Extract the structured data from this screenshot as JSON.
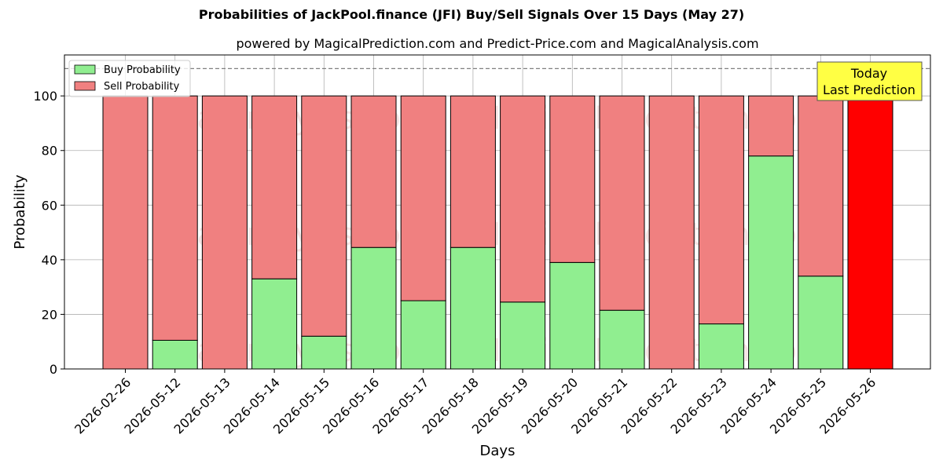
{
  "chart_data": {
    "type": "bar",
    "stacked": true,
    "title": "Probabilities of JackPool.finance (JFI) Buy/Sell Signals Over 15 Days (May 27)",
    "subtitle": "powered by MagicalPrediction.com and Predict-Price.com and MagicalAnalysis.com",
    "xlabel": "Days",
    "ylabel": "Probability",
    "ylim": [
      0,
      115
    ],
    "yticks": [
      0,
      20,
      40,
      60,
      80,
      100
    ],
    "grid": true,
    "legend_position": "top-left",
    "reference_line": 110,
    "categories": [
      "2026-02-26",
      "2026-05-12",
      "2026-05-13",
      "2026-05-14",
      "2026-05-15",
      "2026-05-16",
      "2026-05-17",
      "2026-05-18",
      "2026-05-19",
      "2026-05-20",
      "2026-05-21",
      "2026-05-22",
      "2026-05-23",
      "2026-05-24",
      "2026-05-25",
      "2026-05-26"
    ],
    "series": [
      {
        "name": "Buy Probability",
        "color": "#90ee90",
        "values": [
          0,
          10.5,
          0,
          33,
          12,
          44.5,
          25,
          44.5,
          24.5,
          39,
          21.5,
          0,
          16.5,
          78,
          34,
          0
        ]
      },
      {
        "name": "Sell Probability",
        "color": "#f08080",
        "values": [
          100,
          89.5,
          100,
          67,
          88,
          55.5,
          75,
          55.5,
          75.5,
          61,
          78.5,
          100,
          83.5,
          22,
          66,
          100
        ]
      }
    ],
    "highlight": {
      "category": "2026-05-26",
      "color": "#ff0000",
      "label_lines": [
        "Today",
        "Last Prediction"
      ],
      "label_bg": "#ffff44"
    },
    "watermarks": [
      "MagicalAnalysis.com",
      "MagicalPrediction.com"
    ]
  }
}
